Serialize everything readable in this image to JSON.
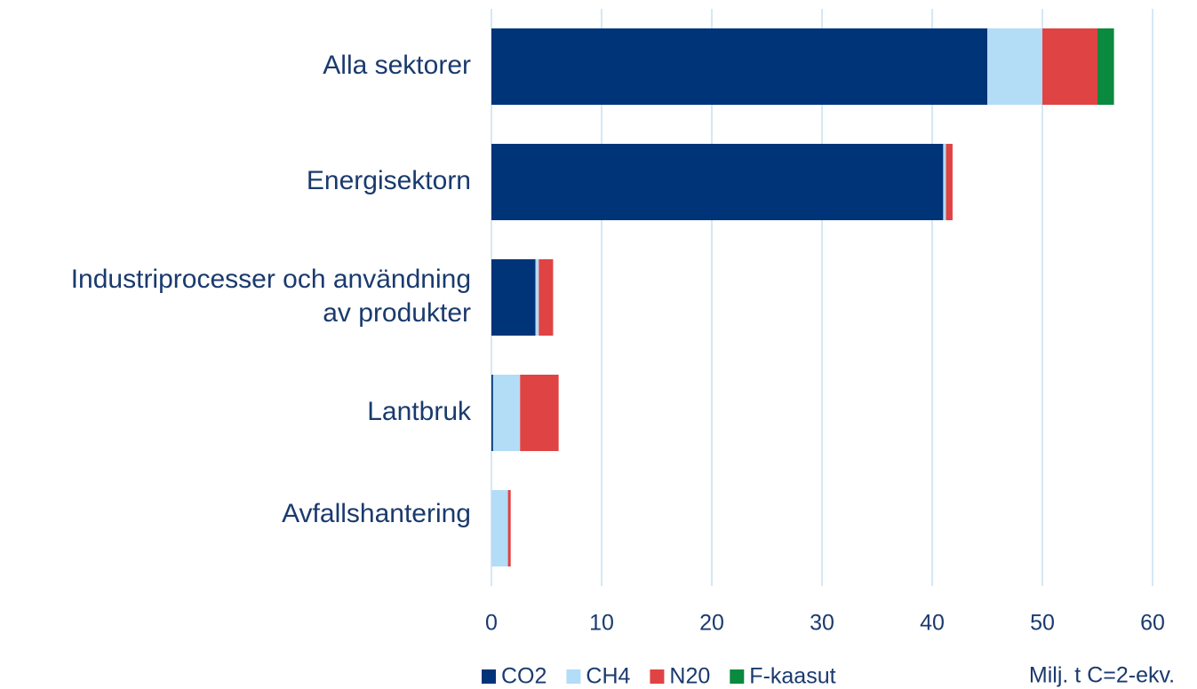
{
  "chart_data": {
    "type": "stacked-barh",
    "categories": [
      "Alla sektorer",
      "Energisektorn",
      "Industriprocesser och användning\nav produkter",
      "Lantbruk",
      "Avfallshantering"
    ],
    "series": [
      {
        "name": "CO2",
        "color": "#003478",
        "values": [
          45.0,
          41.0,
          4.0,
          0.15,
          0
        ]
      },
      {
        "name": "CH4",
        "color": "#b3dcf7",
        "values": [
          5.0,
          0.25,
          0.3,
          2.45,
          1.5
        ]
      },
      {
        "name": "N20",
        "color": "#e04343",
        "values": [
          5.0,
          0.6,
          1.3,
          3.5,
          0.25
        ]
      },
      {
        "name": "F-kaasut",
        "color": "#0a8a3e",
        "values": [
          1.5,
          0,
          0,
          0,
          0
        ]
      }
    ],
    "xlim": [
      0,
      60
    ],
    "xticks": [
      0,
      10,
      20,
      30,
      40,
      50,
      60
    ],
    "grid": true,
    "xlabel": "Milj. t C=2-ekv."
  }
}
